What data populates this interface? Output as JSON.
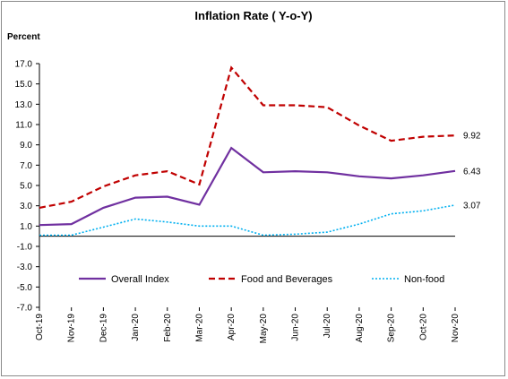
{
  "chart_data": {
    "type": "line",
    "title": "Inflation Rate ( Y-o-Y)",
    "ylabel": "Percent",
    "xlabel": "",
    "ylim": [
      -7.0,
      17.0
    ],
    "yticks": [
      "17.0",
      "15.0",
      "13.0",
      "11.0",
      "9.0",
      "7.0",
      "5.0",
      "3.0",
      "1.0",
      "-1.0",
      "-3.0",
      "-5.0",
      "-7.0"
    ],
    "categories": [
      "Oct-19",
      "Nov-19",
      "Dec-19",
      "Jan-20",
      "Feb-20",
      "Mar-20",
      "Apr-20",
      "May-20",
      "Jun-20",
      "Jul-20",
      "Aug-20",
      "Sep-20",
      "Oct-20",
      "Nov-20"
    ],
    "grid": false,
    "legend_position": "bottom",
    "series": [
      {
        "name": "Overall Index",
        "color": "#7030a0",
        "style": "solid",
        "values": [
          1.1,
          1.2,
          2.8,
          3.8,
          3.9,
          3.1,
          8.7,
          6.3,
          6.4,
          6.3,
          5.9,
          5.7,
          6.0,
          6.43
        ],
        "end_label": "6.43"
      },
      {
        "name": "Food and Beverages",
        "color": "#c00000",
        "style": "dashed",
        "values": [
          2.8,
          3.4,
          4.9,
          6.0,
          6.4,
          5.1,
          16.6,
          12.9,
          12.9,
          12.7,
          10.9,
          9.4,
          9.8,
          9.92
        ],
        "end_label": "9.92"
      },
      {
        "name": "Non-food",
        "color": "#00b0f0",
        "style": "dotted",
        "values": [
          0.1,
          0.1,
          0.9,
          1.7,
          1.4,
          1.0,
          1.0,
          0.1,
          0.2,
          0.4,
          1.2,
          2.2,
          2.5,
          3.07
        ],
        "end_label": "3.07"
      }
    ]
  }
}
